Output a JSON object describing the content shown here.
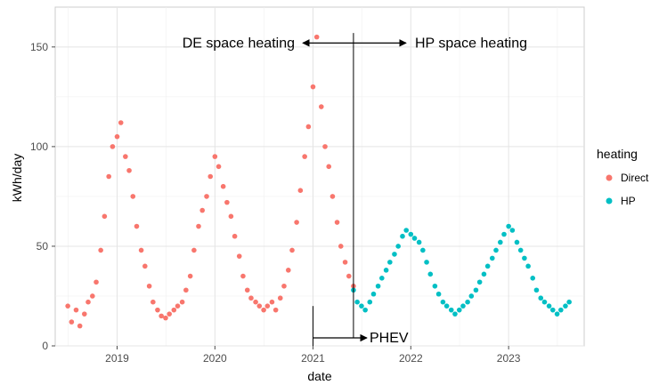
{
  "chart_data": {
    "type": "scatter",
    "xlabel": "date",
    "ylabel": "kWh/day",
    "x_tick_labels": [
      "2019",
      "2020",
      "2021",
      "2022",
      "2023"
    ],
    "x_ticks": [
      "2019-01-01",
      "2020-01-01",
      "2021-01-01",
      "2022-01-01",
      "2023-01-01"
    ],
    "y_ticks": [
      0,
      50,
      100,
      150
    ],
    "xlim": [
      "2018-05-15",
      "2023-10-10"
    ],
    "ylim": [
      0,
      170
    ],
    "grid": true,
    "legend": {
      "title": "heating",
      "placement": "right",
      "items": [
        {
          "label": "Direct",
          "color": "#F8766D"
        },
        {
          "label": "HP",
          "color": "#00BFC4"
        }
      ]
    },
    "annotations": [
      {
        "text": "DE space heating",
        "arrow": "left",
        "y": 152
      },
      {
        "text": "HP space heating",
        "arrow": "right",
        "y": 152
      },
      {
        "text": "PHEV",
        "arrow": "right",
        "y": 4
      }
    ],
    "reference_lines": [
      {
        "date": "2021-06-01",
        "y_range": [
          4,
          157
        ]
      },
      {
        "date": "2021-01-01",
        "y_range": [
          0,
          20
        ]
      }
    ],
    "series": [
      {
        "name": "Direct",
        "color": "#F8766D",
        "points": [
          [
            "2018-07-01",
            20
          ],
          [
            "2018-07-15",
            12
          ],
          [
            "2018-08-01",
            18
          ],
          [
            "2018-08-15",
            10
          ],
          [
            "2018-09-01",
            16
          ],
          [
            "2018-09-15",
            22
          ],
          [
            "2018-10-01",
            25
          ],
          [
            "2018-10-15",
            32
          ],
          [
            "2018-11-01",
            48
          ],
          [
            "2018-11-15",
            65
          ],
          [
            "2018-12-01",
            85
          ],
          [
            "2018-12-15",
            100
          ],
          [
            "2019-01-01",
            105
          ],
          [
            "2019-01-15",
            112
          ],
          [
            "2019-02-01",
            95
          ],
          [
            "2019-02-15",
            88
          ],
          [
            "2019-03-01",
            75
          ],
          [
            "2019-03-15",
            60
          ],
          [
            "2019-04-01",
            48
          ],
          [
            "2019-04-15",
            40
          ],
          [
            "2019-05-01",
            30
          ],
          [
            "2019-05-15",
            22
          ],
          [
            "2019-06-01",
            18
          ],
          [
            "2019-06-15",
            15
          ],
          [
            "2019-07-01",
            14
          ],
          [
            "2019-07-15",
            16
          ],
          [
            "2019-08-01",
            18
          ],
          [
            "2019-08-15",
            20
          ],
          [
            "2019-09-01",
            22
          ],
          [
            "2019-09-15",
            28
          ],
          [
            "2019-10-01",
            35
          ],
          [
            "2019-10-15",
            48
          ],
          [
            "2019-11-01",
            60
          ],
          [
            "2019-11-15",
            68
          ],
          [
            "2019-12-01",
            75
          ],
          [
            "2019-12-15",
            85
          ],
          [
            "2020-01-01",
            95
          ],
          [
            "2020-01-15",
            90
          ],
          [
            "2020-02-01",
            80
          ],
          [
            "2020-02-15",
            72
          ],
          [
            "2020-03-01",
            65
          ],
          [
            "2020-03-15",
            55
          ],
          [
            "2020-04-01",
            45
          ],
          [
            "2020-04-15",
            35
          ],
          [
            "2020-05-01",
            28
          ],
          [
            "2020-05-15",
            24
          ],
          [
            "2020-06-01",
            22
          ],
          [
            "2020-06-15",
            20
          ],
          [
            "2020-07-01",
            18
          ],
          [
            "2020-07-15",
            20
          ],
          [
            "2020-08-01",
            22
          ],
          [
            "2020-08-15",
            18
          ],
          [
            "2020-09-01",
            24
          ],
          [
            "2020-09-15",
            30
          ],
          [
            "2020-10-01",
            38
          ],
          [
            "2020-10-15",
            48
          ],
          [
            "2020-11-01",
            62
          ],
          [
            "2020-11-15",
            78
          ],
          [
            "2020-12-01",
            95
          ],
          [
            "2020-12-15",
            110
          ],
          [
            "2021-01-01",
            130
          ],
          [
            "2021-01-15",
            155
          ],
          [
            "2021-02-01",
            120
          ],
          [
            "2021-02-15",
            100
          ],
          [
            "2021-03-01",
            90
          ],
          [
            "2021-03-15",
            75
          ],
          [
            "2021-04-01",
            62
          ],
          [
            "2021-04-15",
            50
          ],
          [
            "2021-05-01",
            42
          ],
          [
            "2021-05-15",
            35
          ],
          [
            "2021-06-01",
            30
          ]
        ]
      },
      {
        "name": "HP",
        "color": "#00BFC4",
        "points": [
          [
            "2021-06-01",
            28
          ],
          [
            "2021-06-15",
            22
          ],
          [
            "2021-07-01",
            20
          ],
          [
            "2021-07-15",
            18
          ],
          [
            "2021-08-01",
            22
          ],
          [
            "2021-08-15",
            26
          ],
          [
            "2021-09-01",
            30
          ],
          [
            "2021-09-15",
            34
          ],
          [
            "2021-10-01",
            38
          ],
          [
            "2021-10-15",
            42
          ],
          [
            "2021-11-01",
            46
          ],
          [
            "2021-11-15",
            50
          ],
          [
            "2021-12-01",
            55
          ],
          [
            "2021-12-15",
            58
          ],
          [
            "2022-01-01",
            56
          ],
          [
            "2022-01-15",
            54
          ],
          [
            "2022-02-01",
            52
          ],
          [
            "2022-02-15",
            48
          ],
          [
            "2022-03-01",
            42
          ],
          [
            "2022-03-15",
            36
          ],
          [
            "2022-04-01",
            30
          ],
          [
            "2022-04-15",
            26
          ],
          [
            "2022-05-01",
            22
          ],
          [
            "2022-05-15",
            20
          ],
          [
            "2022-06-01",
            18
          ],
          [
            "2022-06-15",
            16
          ],
          [
            "2022-07-01",
            18
          ],
          [
            "2022-07-15",
            20
          ],
          [
            "2022-08-01",
            22
          ],
          [
            "2022-08-15",
            25
          ],
          [
            "2022-09-01",
            28
          ],
          [
            "2022-09-15",
            32
          ],
          [
            "2022-10-01",
            36
          ],
          [
            "2022-10-15",
            40
          ],
          [
            "2022-11-01",
            44
          ],
          [
            "2022-11-15",
            48
          ],
          [
            "2022-12-01",
            52
          ],
          [
            "2022-12-15",
            56
          ],
          [
            "2023-01-01",
            60
          ],
          [
            "2023-01-15",
            58
          ],
          [
            "2023-02-01",
            52
          ],
          [
            "2023-02-15",
            48
          ],
          [
            "2023-03-01",
            44
          ],
          [
            "2023-03-15",
            40
          ],
          [
            "2023-04-01",
            34
          ],
          [
            "2023-04-15",
            28
          ],
          [
            "2023-05-01",
            24
          ],
          [
            "2023-05-15",
            22
          ],
          [
            "2023-06-01",
            20
          ],
          [
            "2023-06-15",
            18
          ],
          [
            "2023-07-01",
            16
          ],
          [
            "2023-07-15",
            18
          ],
          [
            "2023-08-01",
            20
          ],
          [
            "2023-08-15",
            22
          ]
        ]
      }
    ]
  }
}
